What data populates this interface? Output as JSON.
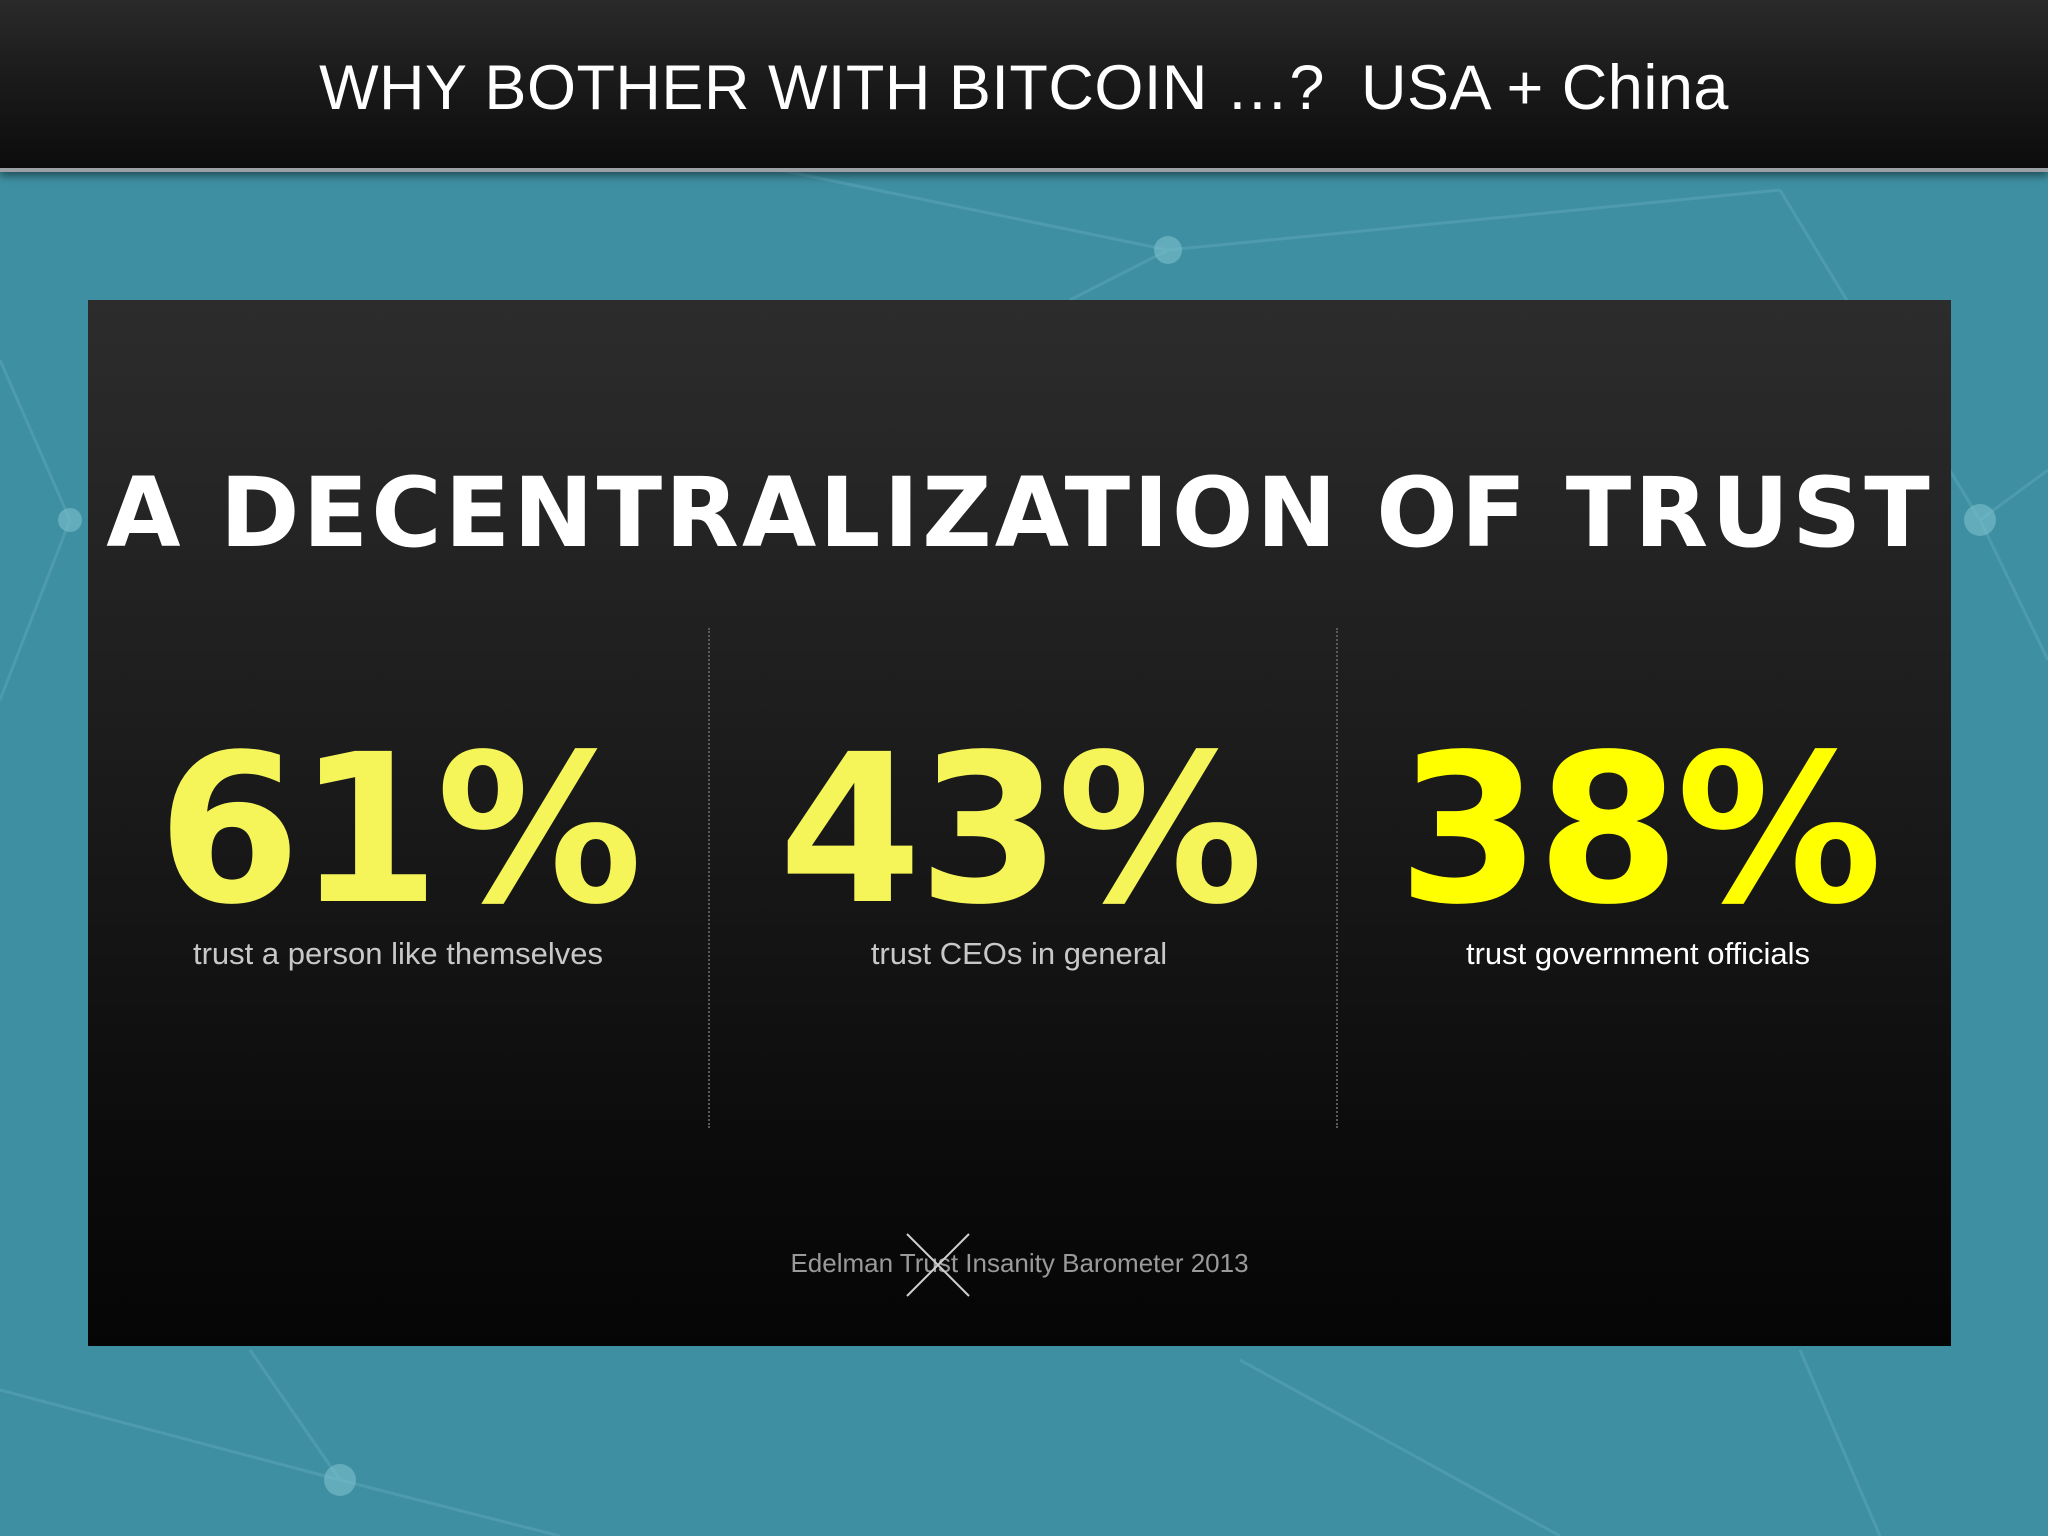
{
  "slide": {
    "title": "WHY BOTHER WITH BITCOIN …?  USA + China"
  },
  "panel": {
    "headline": "A DECENTRALIZATION OF TRUST",
    "stats": [
      {
        "value": "61%",
        "label": "trust a person like themselves",
        "value_color": "#f5f55a",
        "label_color": "#c8c8c8"
      },
      {
        "value": "43%",
        "label": "trust CEOs in general",
        "value_color": "#f5f55a",
        "label_color": "#c8c8c8"
      },
      {
        "value": "38%",
        "label": "trust government officials",
        "value_color": "#ffff00",
        "label_color": "#ffffff"
      }
    ],
    "source": "Edelman Trust Insanity Barometer 2013",
    "source_mark_icon": "cross-out-icon"
  },
  "colors": {
    "background": "#3f8fa2",
    "title_bar": "#1a1a1a",
    "accent_yellow": "#f5f55a"
  }
}
